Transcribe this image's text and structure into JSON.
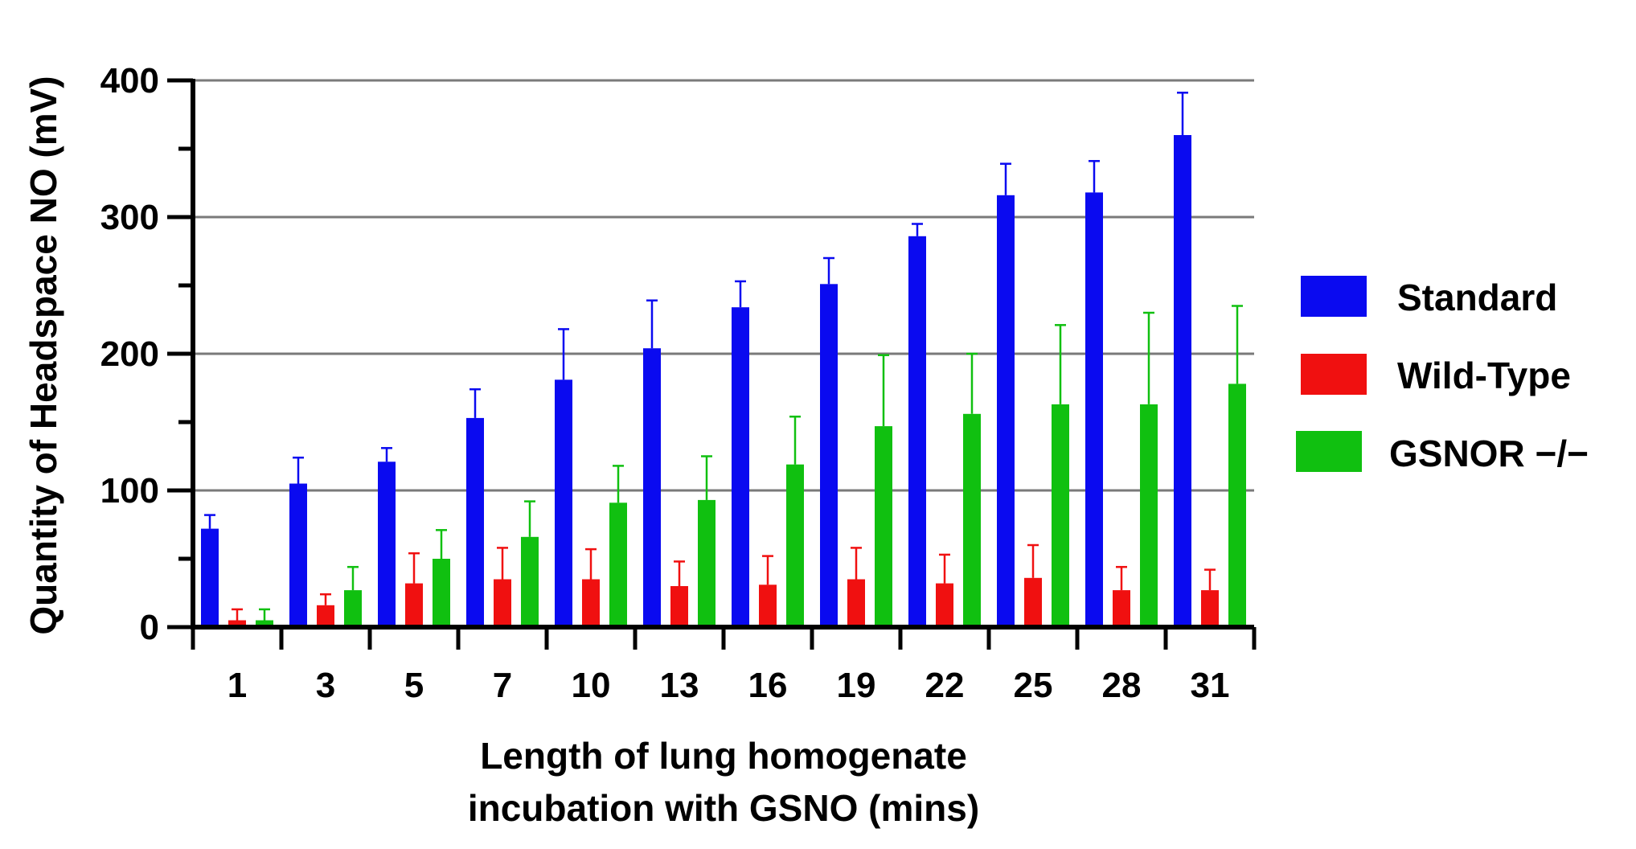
{
  "chart_data": {
    "type": "bar",
    "title": "",
    "xlabel_lines": [
      "Length of lung homogenate",
      "incubation with GSNO (mins)"
    ],
    "ylabel": "Quantity of Headspace NO (mV)",
    "ylim": [
      0,
      400
    ],
    "yticks": [
      0,
      100,
      200,
      300,
      400
    ],
    "grid": true,
    "legend_position": "right",
    "categories": [
      "1",
      "3",
      "5",
      "7",
      "10",
      "13",
      "16",
      "19",
      "22",
      "25",
      "28",
      "31"
    ],
    "series": [
      {
        "name": "Standard",
        "color": "#0a0af0",
        "values": [
          72,
          105,
          121,
          153,
          181,
          204,
          234,
          251,
          286,
          316,
          318,
          360
        ],
        "errors": [
          10,
          19,
          10,
          21,
          37,
          35,
          19,
          19,
          9,
          23,
          23,
          31
        ]
      },
      {
        "name": "Wild-Type",
        "color": "#f01010",
        "values": [
          5,
          16,
          32,
          35,
          35,
          30,
          31,
          35,
          32,
          36,
          27,
          27
        ],
        "errors": [
          8,
          8,
          22,
          23,
          22,
          18,
          21,
          23,
          21,
          24,
          17,
          15
        ]
      },
      {
        "name": "GSNOR −/−",
        "color": "#10c010",
        "values": [
          5,
          27,
          50,
          66,
          91,
          93,
          119,
          147,
          156,
          163,
          163,
          178
        ],
        "errors": [
          8,
          17,
          21,
          26,
          27,
          32,
          35,
          52,
          44,
          58,
          67,
          57
        ]
      }
    ]
  }
}
